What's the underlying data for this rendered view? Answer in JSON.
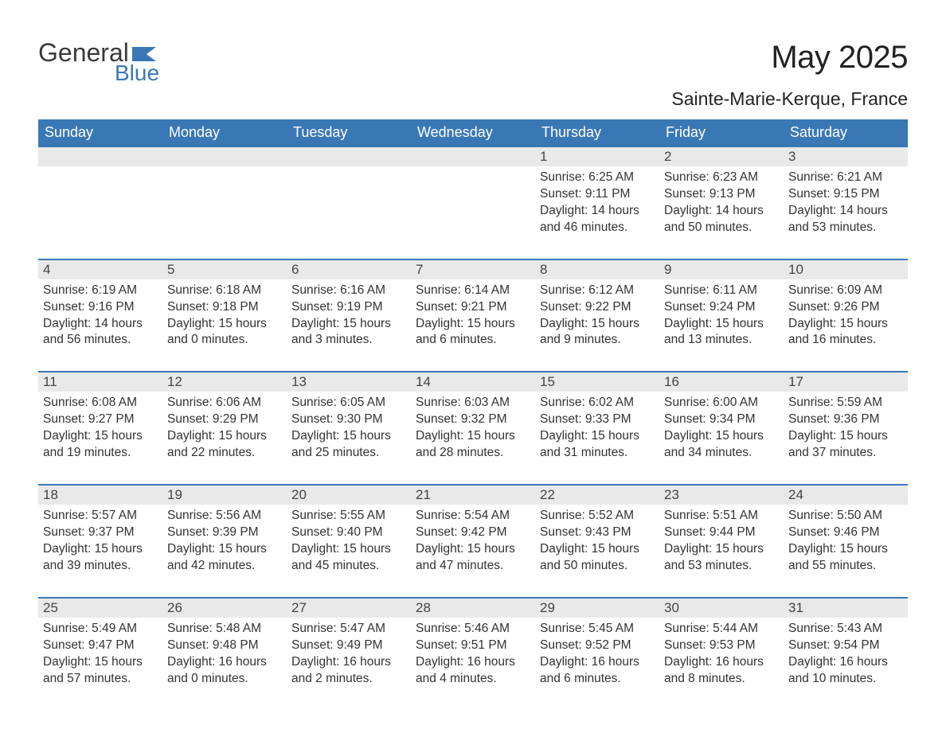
{
  "logo": {
    "text_general": "General",
    "text_blue": "Blue",
    "flag_color": "#3a78b5",
    "text_color_dark": "#3a3a3a"
  },
  "title": "May 2025",
  "location": "Sainte-Marie-Kerque, France",
  "colors": {
    "header_bg": "#3a78b5",
    "header_text": "#ffffff",
    "daynum_bg": "#e9e9e9",
    "daynum_text": "#444444",
    "body_text": "#333333",
    "row_border": "#3a78b5",
    "page_bg": "#ffffff"
  },
  "fonts": {
    "title_size": 40,
    "location_size": 23,
    "header_size": 18,
    "daynum_size": 17,
    "body_size": 15.5
  },
  "day_headers": [
    "Sunday",
    "Monday",
    "Tuesday",
    "Wednesday",
    "Thursday",
    "Friday",
    "Saturday"
  ],
  "weeks": [
    [
      null,
      null,
      null,
      null,
      {
        "n": "1",
        "sr": "Sunrise: 6:25 AM",
        "ss": "Sunset: 9:11 PM",
        "dl": "Daylight: 14 hours and 46 minutes."
      },
      {
        "n": "2",
        "sr": "Sunrise: 6:23 AM",
        "ss": "Sunset: 9:13 PM",
        "dl": "Daylight: 14 hours and 50 minutes."
      },
      {
        "n": "3",
        "sr": "Sunrise: 6:21 AM",
        "ss": "Sunset: 9:15 PM",
        "dl": "Daylight: 14 hours and 53 minutes."
      }
    ],
    [
      {
        "n": "4",
        "sr": "Sunrise: 6:19 AM",
        "ss": "Sunset: 9:16 PM",
        "dl": "Daylight: 14 hours and 56 minutes."
      },
      {
        "n": "5",
        "sr": "Sunrise: 6:18 AM",
        "ss": "Sunset: 9:18 PM",
        "dl": "Daylight: 15 hours and 0 minutes."
      },
      {
        "n": "6",
        "sr": "Sunrise: 6:16 AM",
        "ss": "Sunset: 9:19 PM",
        "dl": "Daylight: 15 hours and 3 minutes."
      },
      {
        "n": "7",
        "sr": "Sunrise: 6:14 AM",
        "ss": "Sunset: 9:21 PM",
        "dl": "Daylight: 15 hours and 6 minutes."
      },
      {
        "n": "8",
        "sr": "Sunrise: 6:12 AM",
        "ss": "Sunset: 9:22 PM",
        "dl": "Daylight: 15 hours and 9 minutes."
      },
      {
        "n": "9",
        "sr": "Sunrise: 6:11 AM",
        "ss": "Sunset: 9:24 PM",
        "dl": "Daylight: 15 hours and 13 minutes."
      },
      {
        "n": "10",
        "sr": "Sunrise: 6:09 AM",
        "ss": "Sunset: 9:26 PM",
        "dl": "Daylight: 15 hours and 16 minutes."
      }
    ],
    [
      {
        "n": "11",
        "sr": "Sunrise: 6:08 AM",
        "ss": "Sunset: 9:27 PM",
        "dl": "Daylight: 15 hours and 19 minutes."
      },
      {
        "n": "12",
        "sr": "Sunrise: 6:06 AM",
        "ss": "Sunset: 9:29 PM",
        "dl": "Daylight: 15 hours and 22 minutes."
      },
      {
        "n": "13",
        "sr": "Sunrise: 6:05 AM",
        "ss": "Sunset: 9:30 PM",
        "dl": "Daylight: 15 hours and 25 minutes."
      },
      {
        "n": "14",
        "sr": "Sunrise: 6:03 AM",
        "ss": "Sunset: 9:32 PM",
        "dl": "Daylight: 15 hours and 28 minutes."
      },
      {
        "n": "15",
        "sr": "Sunrise: 6:02 AM",
        "ss": "Sunset: 9:33 PM",
        "dl": "Daylight: 15 hours and 31 minutes."
      },
      {
        "n": "16",
        "sr": "Sunrise: 6:00 AM",
        "ss": "Sunset: 9:34 PM",
        "dl": "Daylight: 15 hours and 34 minutes."
      },
      {
        "n": "17",
        "sr": "Sunrise: 5:59 AM",
        "ss": "Sunset: 9:36 PM",
        "dl": "Daylight: 15 hours and 37 minutes."
      }
    ],
    [
      {
        "n": "18",
        "sr": "Sunrise: 5:57 AM",
        "ss": "Sunset: 9:37 PM",
        "dl": "Daylight: 15 hours and 39 minutes."
      },
      {
        "n": "19",
        "sr": "Sunrise: 5:56 AM",
        "ss": "Sunset: 9:39 PM",
        "dl": "Daylight: 15 hours and 42 minutes."
      },
      {
        "n": "20",
        "sr": "Sunrise: 5:55 AM",
        "ss": "Sunset: 9:40 PM",
        "dl": "Daylight: 15 hours and 45 minutes."
      },
      {
        "n": "21",
        "sr": "Sunrise: 5:54 AM",
        "ss": "Sunset: 9:42 PM",
        "dl": "Daylight: 15 hours and 47 minutes."
      },
      {
        "n": "22",
        "sr": "Sunrise: 5:52 AM",
        "ss": "Sunset: 9:43 PM",
        "dl": "Daylight: 15 hours and 50 minutes."
      },
      {
        "n": "23",
        "sr": "Sunrise: 5:51 AM",
        "ss": "Sunset: 9:44 PM",
        "dl": "Daylight: 15 hours and 53 minutes."
      },
      {
        "n": "24",
        "sr": "Sunrise: 5:50 AM",
        "ss": "Sunset: 9:46 PM",
        "dl": "Daylight: 15 hours and 55 minutes."
      }
    ],
    [
      {
        "n": "25",
        "sr": "Sunrise: 5:49 AM",
        "ss": "Sunset: 9:47 PM",
        "dl": "Daylight: 15 hours and 57 minutes."
      },
      {
        "n": "26",
        "sr": "Sunrise: 5:48 AM",
        "ss": "Sunset: 9:48 PM",
        "dl": "Daylight: 16 hours and 0 minutes."
      },
      {
        "n": "27",
        "sr": "Sunrise: 5:47 AM",
        "ss": "Sunset: 9:49 PM",
        "dl": "Daylight: 16 hours and 2 minutes."
      },
      {
        "n": "28",
        "sr": "Sunrise: 5:46 AM",
        "ss": "Sunset: 9:51 PM",
        "dl": "Daylight: 16 hours and 4 minutes."
      },
      {
        "n": "29",
        "sr": "Sunrise: 5:45 AM",
        "ss": "Sunset: 9:52 PM",
        "dl": "Daylight: 16 hours and 6 minutes."
      },
      {
        "n": "30",
        "sr": "Sunrise: 5:44 AM",
        "ss": "Sunset: 9:53 PM",
        "dl": "Daylight: 16 hours and 8 minutes."
      },
      {
        "n": "31",
        "sr": "Sunrise: 5:43 AM",
        "ss": "Sunset: 9:54 PM",
        "dl": "Daylight: 16 hours and 10 minutes."
      }
    ]
  ]
}
